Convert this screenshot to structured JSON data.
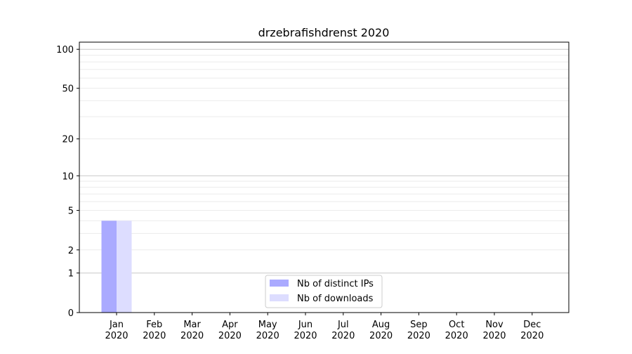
{
  "chart_data": {
    "type": "bar",
    "title": "drzebrafishdrenst 2020",
    "xlabel": "",
    "ylabel": "",
    "yscale": "symlog",
    "ylim": [
      0,
      113
    ],
    "yticks": [
      0,
      1,
      2,
      5,
      10,
      20,
      50,
      100
    ],
    "grid": true,
    "legend_position": "lower-center",
    "categories": [
      "Jan\n2020",
      "Feb\n2020",
      "Mar\n2020",
      "Apr\n2020",
      "May\n2020",
      "Jun\n2020",
      "Jul\n2020",
      "Aug\n2020",
      "Sep\n2020",
      "Oct\n2020",
      "Nov\n2020",
      "Dec\n2020"
    ],
    "series": [
      {
        "name": "Nb of distinct IPs",
        "color": "#aaaaff",
        "values": [
          4,
          0,
          0,
          0,
          0,
          0,
          0,
          0,
          0,
          0,
          0,
          0
        ]
      },
      {
        "name": "Nb of downloads",
        "color": "#ddddff",
        "values": [
          4,
          0,
          0,
          0,
          0,
          0,
          0,
          0,
          0,
          0,
          0,
          0
        ]
      }
    ]
  }
}
